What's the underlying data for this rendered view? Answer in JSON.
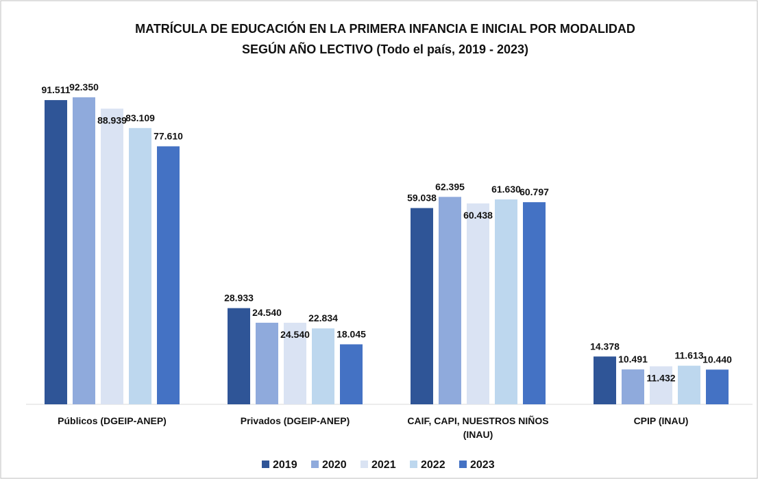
{
  "chart_data": {
    "type": "bar",
    "title": [
      "MATRÍCULA DE EDUCACIÓN EN LA PRIMERA INFANCIA E INICIAL POR MODALIDAD",
      "SEGÚN AÑO LECTIVO (Todo el país, 2019 - 2023)"
    ],
    "categories": [
      "Públicos (DGEIP-ANEP)",
      "Privados (DGEIP-ANEP)",
      "CAIF, CAPI, NUESTROS NIÑOS (INAU)",
      "CPIP (INAU)"
    ],
    "series": [
      {
        "name": "2019",
        "color": "#2f5597",
        "values": [
          91511,
          28933,
          59038,
          14378
        ],
        "value_labels": [
          "91.511",
          "28.933",
          "59.038",
          "14.378"
        ]
      },
      {
        "name": "2020",
        "color": "#8faadc",
        "values": [
          92350,
          24540,
          62395,
          10491
        ],
        "value_labels": [
          "92.350",
          "24.540",
          "62.395",
          "10.491"
        ]
      },
      {
        "name": "2021",
        "color": "#dae3f3",
        "values": [
          88939,
          24540,
          60438,
          11432
        ],
        "value_labels": [
          "88.939",
          "24.540",
          "60.438",
          "11.432"
        ]
      },
      {
        "name": "2022",
        "color": "#bdd7ee",
        "values": [
          83109,
          22834,
          61630,
          11613
        ],
        "value_labels": [
          "83.109",
          "22.834",
          "61.630",
          "11.613"
        ]
      },
      {
        "name": "2023",
        "color": "#4472c4",
        "values": [
          77610,
          18045,
          60797,
          10440
        ],
        "value_labels": [
          "77.610",
          "18.045",
          "60.797",
          "10.440"
        ]
      }
    ],
    "legend": "bottom"
  }
}
